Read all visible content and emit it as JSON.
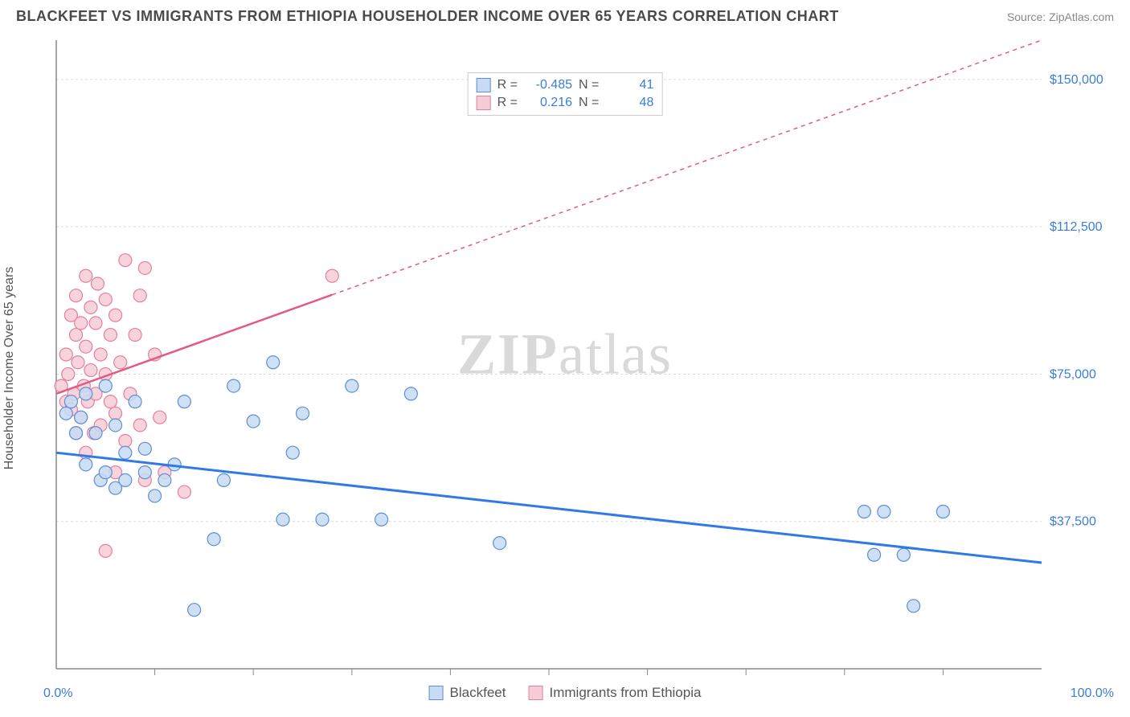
{
  "title": "BLACKFEET VS IMMIGRANTS FROM ETHIOPIA HOUSEHOLDER INCOME OVER 65 YEARS CORRELATION CHART",
  "source": "Source: ZipAtlas.com",
  "ylabel": "Householder Income Over 65 years",
  "watermark_a": "ZIP",
  "watermark_b": "atlas",
  "chart": {
    "type": "scatter",
    "xlim": [
      0,
      100
    ],
    "ylim": [
      0,
      160000
    ],
    "x_start_label": "0.0%",
    "x_end_label": "100.0%",
    "x_ticks": [
      10,
      20,
      30,
      40,
      50,
      60,
      70,
      80,
      90
    ],
    "y_gridlines": [
      37500,
      75000,
      112500,
      150000
    ],
    "y_labels": [
      "$37,500",
      "$75,000",
      "$112,500",
      "$150,000"
    ],
    "grid_color": "#dcdcdc",
    "axis_color": "#888888",
    "background": "#ffffff",
    "series": [
      {
        "name": "Blackfeet",
        "color_fill": "#c7dbf2",
        "color_stroke": "#5b8fd6",
        "marker_r": 8,
        "R": "-0.485",
        "N": "41",
        "trend": {
          "x1": 0,
          "y1": 55000,
          "x2": 100,
          "y2": 27000,
          "color": "#2f7ae5",
          "width": 3,
          "dash": ""
        },
        "points": [
          [
            1,
            65000
          ],
          [
            1.5,
            68000
          ],
          [
            2,
            60000
          ],
          [
            2.5,
            64000
          ],
          [
            3,
            70000
          ],
          [
            3,
            52000
          ],
          [
            4,
            60000
          ],
          [
            4.5,
            48000
          ],
          [
            5,
            50000
          ],
          [
            5,
            72000
          ],
          [
            6,
            46000
          ],
          [
            6,
            62000
          ],
          [
            7,
            55000
          ],
          [
            7,
            48000
          ],
          [
            8,
            68000
          ],
          [
            9,
            50000
          ],
          [
            9,
            56000
          ],
          [
            10,
            44000
          ],
          [
            11,
            48000
          ],
          [
            12,
            52000
          ],
          [
            13,
            68000
          ],
          [
            14,
            15000
          ],
          [
            16,
            33000
          ],
          [
            17,
            48000
          ],
          [
            18,
            72000
          ],
          [
            20,
            63000
          ],
          [
            22,
            78000
          ],
          [
            23,
            38000
          ],
          [
            24,
            55000
          ],
          [
            25,
            65000
          ],
          [
            27,
            38000
          ],
          [
            30,
            72000
          ],
          [
            33,
            38000
          ],
          [
            36,
            70000
          ],
          [
            45,
            32000
          ],
          [
            82,
            40000
          ],
          [
            83,
            29000
          ],
          [
            84,
            40000
          ],
          [
            86,
            29000
          ],
          [
            87,
            16000
          ],
          [
            90,
            40000
          ]
        ]
      },
      {
        "name": "Immigrants from Ethiopia",
        "color_fill": "#f6cdd6",
        "color_stroke": "#e67f9b",
        "marker_r": 8,
        "R": "0.216",
        "N": "48",
        "trend": {
          "x1": 0,
          "y1": 70000,
          "x2": 100,
          "y2": 160000,
          "color": "#e35b84",
          "width": 2.5,
          "dash": "5"
        },
        "trend_solid_until_x": 28,
        "points": [
          [
            0.5,
            72000
          ],
          [
            1,
            68000
          ],
          [
            1,
            80000
          ],
          [
            1.2,
            75000
          ],
          [
            1.5,
            66000
          ],
          [
            1.5,
            90000
          ],
          [
            1.8,
            70000
          ],
          [
            2,
            85000
          ],
          [
            2,
            60000
          ],
          [
            2,
            95000
          ],
          [
            2.2,
            78000
          ],
          [
            2.5,
            88000
          ],
          [
            2.5,
            64000
          ],
          [
            2.8,
            72000
          ],
          [
            3,
            100000
          ],
          [
            3,
            82000
          ],
          [
            3,
            55000
          ],
          [
            3.2,
            68000
          ],
          [
            3.5,
            92000
          ],
          [
            3.5,
            76000
          ],
          [
            3.8,
            60000
          ],
          [
            4,
            88000
          ],
          [
            4,
            70000
          ],
          [
            4.2,
            98000
          ],
          [
            4.5,
            80000
          ],
          [
            4.5,
            62000
          ],
          [
            5,
            94000
          ],
          [
            5,
            75000
          ],
          [
            5,
            30000
          ],
          [
            5.5,
            85000
          ],
          [
            5.5,
            68000
          ],
          [
            6,
            90000
          ],
          [
            6,
            50000
          ],
          [
            6,
            65000
          ],
          [
            6.5,
            78000
          ],
          [
            7,
            104000
          ],
          [
            7,
            58000
          ],
          [
            7.5,
            70000
          ],
          [
            8,
            85000
          ],
          [
            8.5,
            95000
          ],
          [
            8.5,
            62000
          ],
          [
            9,
            102000
          ],
          [
            9,
            48000
          ],
          [
            10,
            80000
          ],
          [
            10.5,
            64000
          ],
          [
            11,
            50000
          ],
          [
            13,
            45000
          ],
          [
            28,
            100000
          ]
        ]
      }
    ]
  },
  "legend": {
    "s1_label": "Blackfeet",
    "s2_label": "Immigrants from Ethiopia"
  },
  "corr_labels": {
    "R": "R =",
    "N": "N ="
  }
}
